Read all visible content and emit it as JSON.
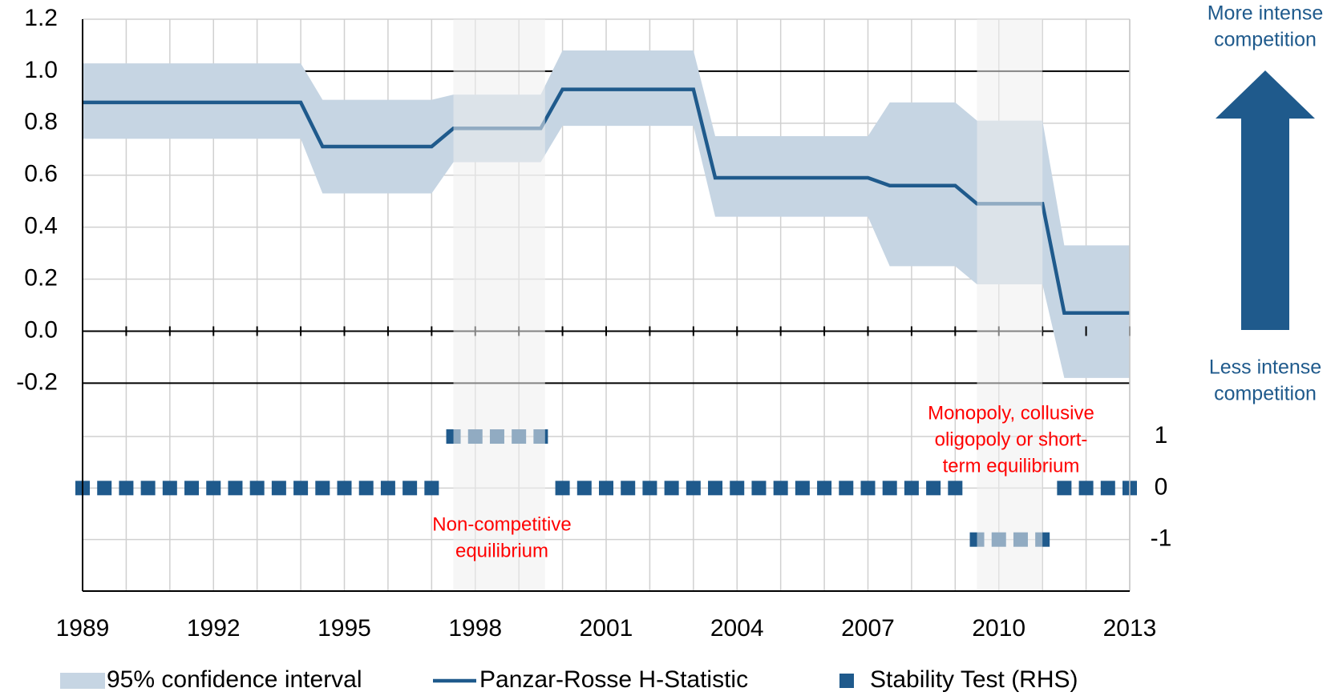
{
  "chart_data": {
    "type": "line",
    "xlim": [
      1989,
      2013
    ],
    "xticks": [
      1989,
      1992,
      1995,
      1998,
      2001,
      2004,
      2007,
      2010,
      2013
    ],
    "x_minor_ticks": [
      1989,
      1990,
      1991,
      1992,
      1993,
      1994,
      1995,
      1996,
      1997,
      1998,
      1999,
      2000,
      2001,
      2002,
      2003,
      2004,
      2005,
      2006,
      2007,
      2008,
      2009,
      2010,
      2011,
      2012,
      2013
    ],
    "ylim": [
      -1.0,
      1.2
    ],
    "yticks": [
      {
        "value": 1.2,
        "label": "1.2"
      },
      {
        "value": 1.0,
        "label": "1.0"
      },
      {
        "value": 0.8,
        "label": "0.8"
      },
      {
        "value": 0.6,
        "label": "0.6"
      },
      {
        "value": 0.4,
        "label": "0.4"
      },
      {
        "value": 0.2,
        "label": "0.2"
      },
      {
        "value": 0,
        "label": "0.0"
      },
      {
        "value": -0.2,
        "label": "-0.2"
      }
    ],
    "y_strong_lines": [
      1.0,
      0,
      -0.2
    ],
    "y2lim": [
      -2,
      9.1
    ],
    "y2ticks": [
      1,
      0,
      -1
    ],
    "grid": true,
    "shaded_ranges": [
      [
        1997.5,
        1999.6
      ],
      [
        2009.5,
        2011.0
      ]
    ],
    "series": [
      {
        "name": "95% confidence interval",
        "kind": "band",
        "color": "#c6d5e3",
        "x": [
          1989,
          1994,
          1994.5,
          1997,
          1997.5,
          1999.5,
          2000,
          2003,
          2003.5,
          2007,
          2007.5,
          2009,
          2009.5,
          2011,
          2011.5,
          2013
        ],
        "high": [
          1.03,
          1.03,
          0.89,
          0.89,
          0.91,
          0.91,
          1.08,
          1.08,
          0.75,
          0.75,
          0.88,
          0.88,
          0.81,
          0.81,
          0.33,
          0.33
        ],
        "low": [
          0.74,
          0.74,
          0.53,
          0.53,
          0.65,
          0.65,
          0.79,
          0.79,
          0.44,
          0.44,
          0.25,
          0.25,
          0.18,
          0.18,
          -0.18,
          -0.18
        ]
      },
      {
        "name": "Panzar-Rosse H-Statistic",
        "kind": "line",
        "color": "#1f5a8c",
        "x": [
          1989,
          1994,
          1994.5,
          1997,
          1997.5,
          1999.5,
          2000,
          2003,
          2003.5,
          2007,
          2007.5,
          2009,
          2009.5,
          2011,
          2011.5,
          2013
        ],
        "values": [
          0.88,
          0.88,
          0.71,
          0.71,
          0.78,
          0.78,
          0.93,
          0.93,
          0.59,
          0.59,
          0.56,
          0.56,
          0.49,
          0.49,
          0.07,
          0.07
        ]
      },
      {
        "name": "Stability Test (RHS)",
        "kind": "square",
        "axis": "y2",
        "color": "#1f5a8c",
        "x": [
          1989,
          1989.5,
          1990,
          1990.5,
          1991,
          1991.5,
          1992,
          1992.5,
          1993,
          1993.5,
          1994,
          1994.5,
          1995,
          1995.5,
          1996,
          1996.5,
          1997,
          1997.5,
          1998,
          1998.5,
          1999,
          1999.5,
          2000,
          2000.5,
          2001,
          2001.5,
          2002,
          2002.5,
          2003,
          2003.5,
          2004,
          2004.5,
          2005,
          2005.5,
          2006,
          2006.5,
          2007,
          2007.5,
          2008,
          2008.5,
          2009,
          2009.5,
          2010,
          2010.5,
          2011,
          2011.5,
          2012,
          2012.5,
          2013
        ],
        "values": [
          0,
          0,
          0,
          0,
          0,
          0,
          0,
          0,
          0,
          0,
          0,
          0,
          0,
          0,
          0,
          0,
          0,
          1,
          1,
          1,
          1,
          1,
          0,
          0,
          0,
          0,
          0,
          0,
          0,
          0,
          0,
          0,
          0,
          0,
          0,
          0,
          0,
          0,
          0,
          0,
          0,
          -1,
          -1,
          -1,
          -1,
          0,
          0,
          0,
          0
        ]
      }
    ],
    "annotations": [
      {
        "lines": [
          "More intense",
          "competition"
        ]
      },
      {
        "lines": [
          "Less intense",
          "competition"
        ]
      },
      {
        "lines": [
          "Non-competitive",
          "equilibrium"
        ],
        "color": "#ff0000"
      },
      {
        "lines": [
          "Monopoly, collusive",
          "oligopoly or short-",
          "term equilibrium"
        ],
        "color": "#ff0000"
      }
    ]
  }
}
